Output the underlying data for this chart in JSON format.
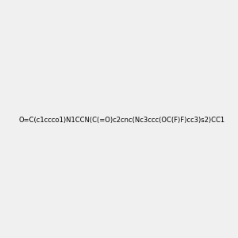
{
  "smiles": "O=C(c1ccco1)N1CCN(C(=O)c2cnc(Nc3ccc(OC(F)F)cc3)s2)CC1",
  "image_size": 300,
  "background_color": "#f0f0f0",
  "title": ""
}
